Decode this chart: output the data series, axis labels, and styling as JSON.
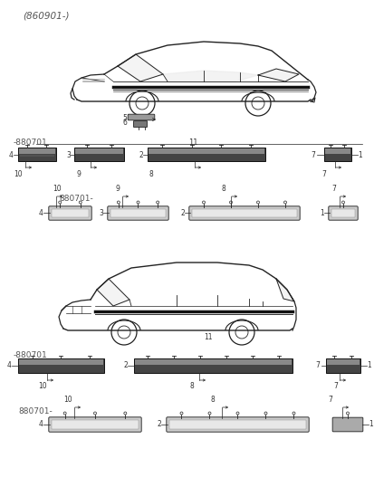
{
  "bg_color": "#ffffff",
  "line_color": "#222222",
  "text_color": "#333333",
  "dark_gray": "#555555",
  "fig_width": 4.14,
  "fig_height": 5.38,
  "dpi": 100,
  "label_860901": "(860901-)",
  "label_880701a": "-880701",
  "label_880701b": "880701-",
  "label_880701c": "-880701",
  "label_880701d": "880701-"
}
